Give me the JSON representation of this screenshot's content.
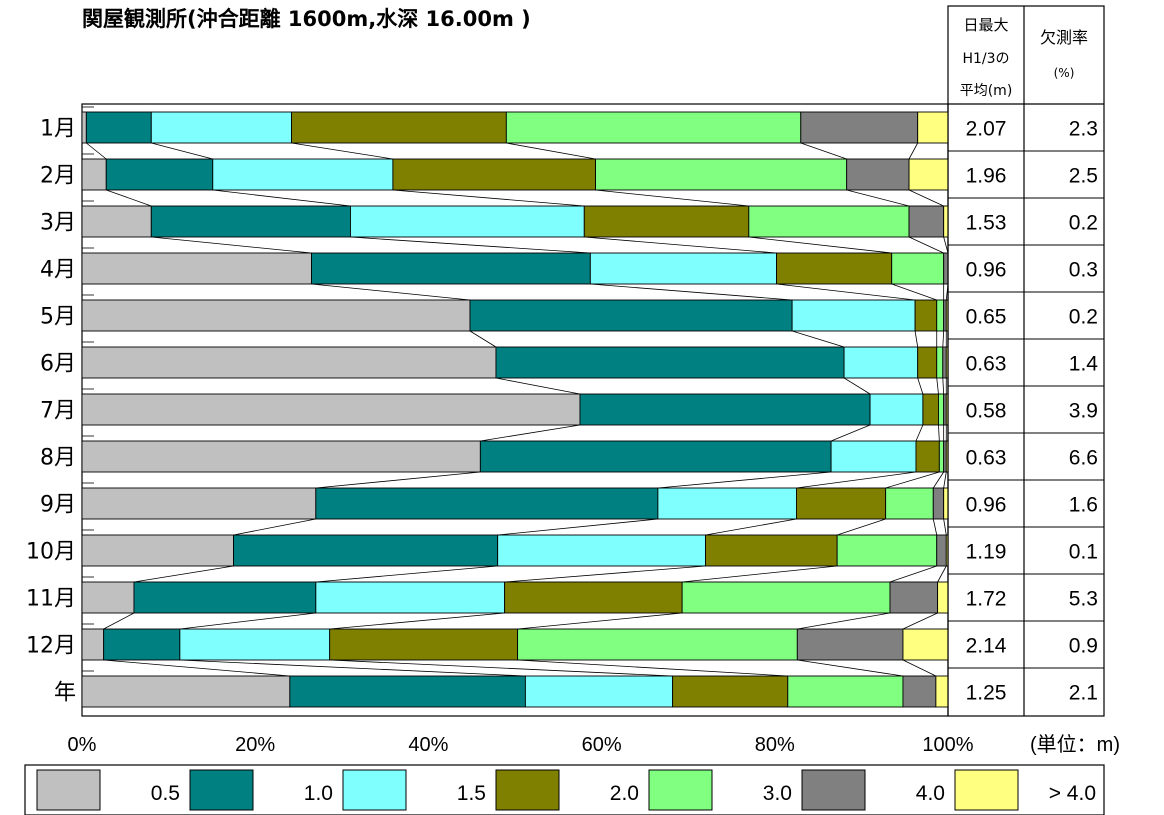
{
  "chart_data": {
    "type": "bar",
    "orientation": "horizontal",
    "stacked": "percent",
    "title": "関屋観測所(沖合距離 1600m,水深 16.00m )",
    "unit_label": "(単位：m)",
    "categories": [
      "1月",
      "2月",
      "3月",
      "4月",
      "5月",
      "6月",
      "7月",
      "8月",
      "9月",
      "10月",
      "11月",
      "12月",
      "年"
    ],
    "series": [
      {
        "name": "0.5",
        "color": "#c0c0c0",
        "values": [
          0.5,
          2.8,
          8.0,
          26.5,
          44.8,
          47.8,
          57.5,
          46.0,
          27.0,
          17.5,
          6.0,
          2.5,
          24.0
        ]
      },
      {
        "name": "1.0",
        "color": "#008080",
        "values": [
          7.5,
          12.3,
          23.0,
          32.2,
          37.2,
          40.2,
          33.5,
          40.5,
          39.5,
          30.5,
          21.0,
          8.8,
          27.2
        ]
      },
      {
        "name": "1.5",
        "color": "#80ffff",
        "values": [
          16.2,
          20.8,
          27.0,
          21.5,
          14.2,
          8.5,
          6.1,
          9.8,
          16.0,
          24.0,
          21.8,
          17.3,
          17.0
        ]
      },
      {
        "name": "2.0",
        "color": "#808000",
        "values": [
          24.8,
          23.4,
          19.0,
          13.3,
          2.5,
          2.2,
          1.8,
          2.7,
          10.3,
          15.2,
          20.5,
          21.7,
          13.3
        ]
      },
      {
        "name": "3.0",
        "color": "#80ff80",
        "values": [
          34.0,
          29.0,
          18.5,
          6.0,
          0.8,
          0.7,
          0.6,
          0.5,
          5.5,
          11.5,
          24.0,
          32.3,
          13.3
        ]
      },
      {
        "name": "4.0",
        "color": "#808080",
        "values": [
          13.5,
          7.2,
          4.0,
          0.5,
          0.3,
          0.4,
          0.3,
          0.3,
          1.2,
          1.1,
          5.5,
          12.2,
          3.8
        ]
      },
      {
        "name": "> 4.0",
        "color": "#ffff80",
        "values": [
          3.5,
          4.5,
          0.5,
          0.0,
          0.2,
          0.2,
          0.2,
          0.2,
          0.5,
          0.2,
          1.2,
          5.2,
          1.4
        ]
      }
    ],
    "x_axis": {
      "min": 0,
      "max": 100,
      "ticks": [
        "0%",
        "20%",
        "40%",
        "60%",
        "80%",
        "100%"
      ]
    },
    "series_connector_lines": true,
    "legend_position": "bottom",
    "table": {
      "headers": [
        {
          "lines": [
            "日最大",
            "H1/3の",
            "平均(m)"
          ]
        },
        {
          "lines": [
            "欠測率",
            "(%)"
          ]
        }
      ],
      "daily_max_h13_avg": [
        "2.07",
        "1.96",
        "1.53",
        "0.96",
        "0.65",
        "0.63",
        "0.58",
        "0.63",
        "0.96",
        "1.19",
        "1.72",
        "2.14",
        "1.25"
      ],
      "missing_rate": [
        "2.3",
        "2.5",
        "0.2",
        "0.3",
        "0.2",
        "1.4",
        "3.9",
        "6.6",
        "1.6",
        "0.1",
        "5.3",
        "0.9",
        "2.1"
      ]
    }
  }
}
